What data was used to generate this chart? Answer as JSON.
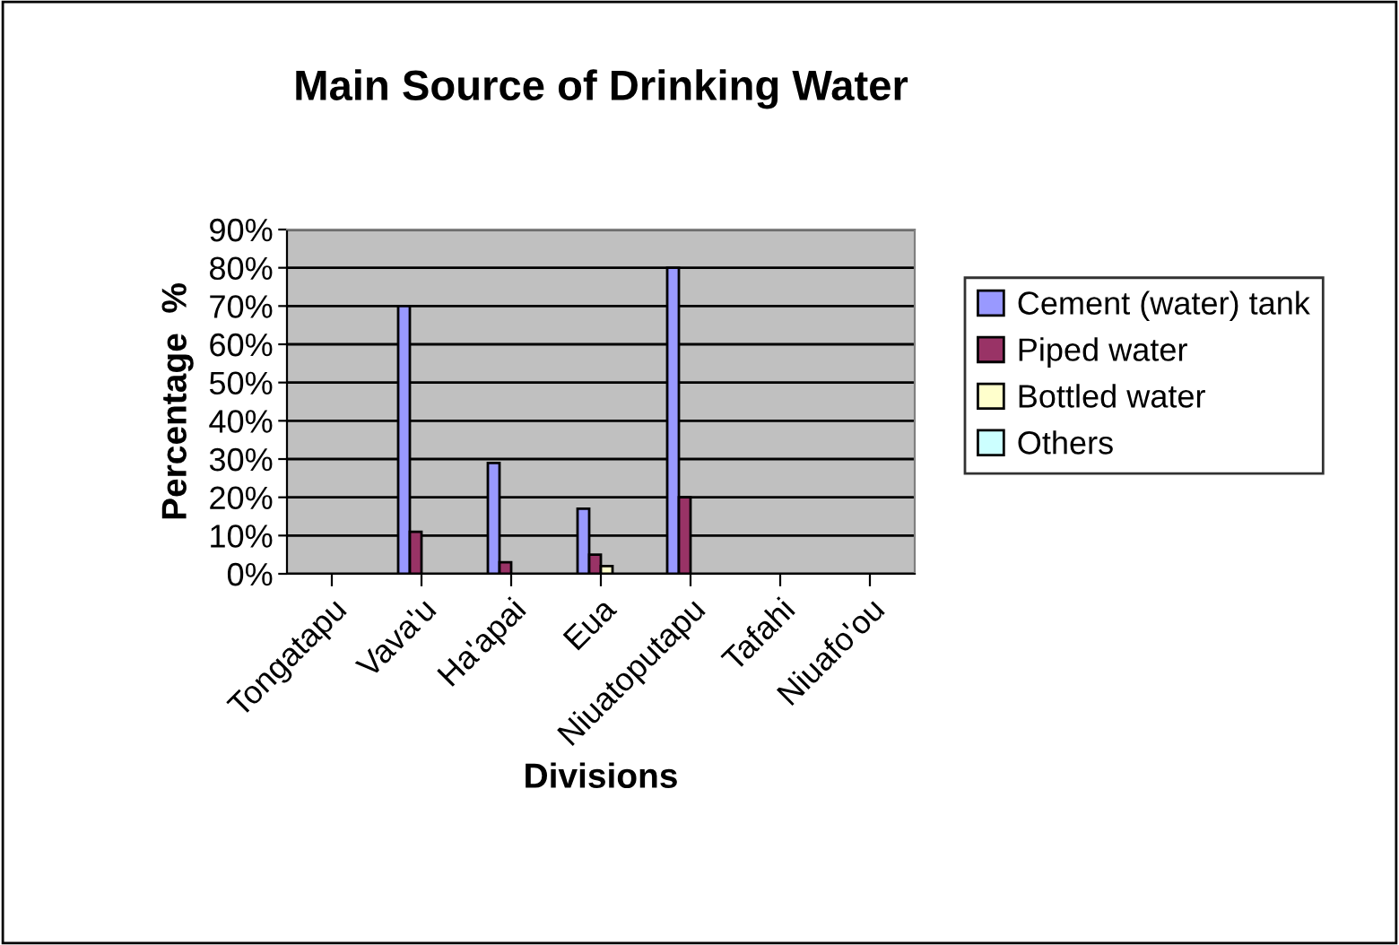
{
  "chart_data": {
    "type": "bar",
    "title": "Main Source of Drinking Water",
    "xlabel": "Divisions",
    "ylabel": "Percentage  %",
    "categories": [
      "Tongatapu",
      "Vava'u",
      "Ha'apai",
      "Eua",
      "Niuatoputapu",
      "Tafahi",
      "Niuafo'ou"
    ],
    "series": [
      {
        "name": "Cement (water) tank",
        "color": "#9999ff",
        "values": [
          null,
          70,
          29,
          17,
          80,
          null,
          null
        ]
      },
      {
        "name": "Piped water",
        "color": "#993366",
        "values": [
          null,
          11,
          3,
          5,
          20,
          null,
          null
        ]
      },
      {
        "name": "Bottled water",
        "color": "#ffffcc",
        "values": [
          null,
          null,
          null,
          2,
          null,
          null,
          null
        ]
      },
      {
        "name": "Others",
        "color": "#ccffff",
        "values": [
          null,
          null,
          null,
          null,
          null,
          null,
          null
        ]
      }
    ],
    "ylim": [
      0,
      90
    ],
    "yticks": [
      {
        "value": 0,
        "label": "0%"
      },
      {
        "value": 10,
        "label": "10%"
      },
      {
        "value": 20,
        "label": "20%"
      },
      {
        "value": 30,
        "label": "30%"
      },
      {
        "value": 40,
        "label": "40%"
      },
      {
        "value": 50,
        "label": "50%"
      },
      {
        "value": 60,
        "label": "60%"
      },
      {
        "value": 70,
        "label": "70%"
      },
      {
        "value": 80,
        "label": "80%"
      },
      {
        "value": 90,
        "label": "90%"
      }
    ],
    "grid": "y",
    "legend": "right"
  }
}
